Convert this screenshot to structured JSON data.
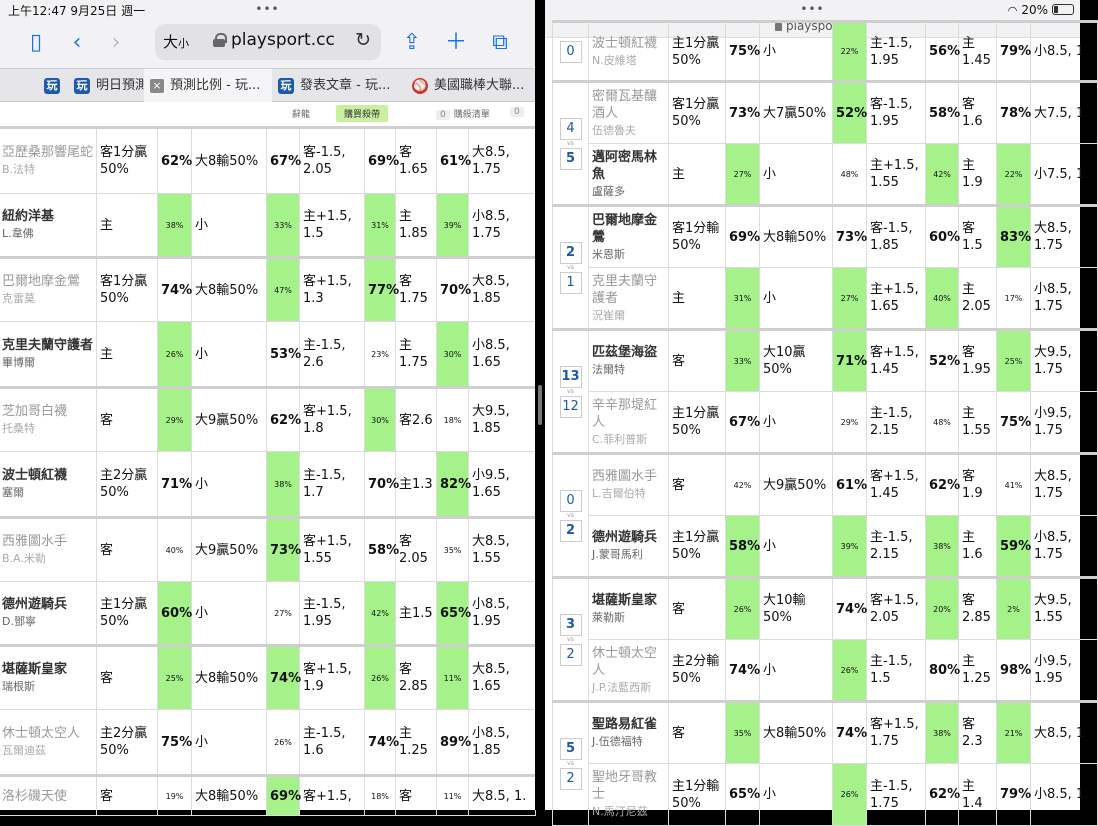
{
  "left": {
    "status": {
      "time": "上午12:47  9月25日 週一",
      "dots": "•••"
    },
    "toolbar": {
      "text_size": "大",
      "text_size_small": "小",
      "host": "playsport.cc"
    },
    "tabs": [
      {
        "label": "明日預測",
        "icon": "playsport-fav"
      },
      {
        "label": "預測比例 - 玩...",
        "icon": "close-icon",
        "active": true
      },
      {
        "label": "發表文章 - 玩...",
        "icon": "playsport-fav"
      },
      {
        "label": "美國職棒大聯...",
        "icon": "baseball-fav"
      }
    ],
    "tab_prefix_icon": "玩",
    "filter": {
      "item1": "辭龍",
      "buy": "購買殺帶",
      "badge1": "0",
      "list": "購殺清單",
      "badge2": "0"
    },
    "rows": [
      {
        "team": "亞歷桑那響尾蛇",
        "pitcher": "B.法特",
        "style": "gray",
        "c1": "客1分贏50%",
        "p1": "62%",
        "c2": "大8輸50%",
        "p2": "67%",
        "c3": "客-1.5, 2.05",
        "p3": "69%",
        "c4": "客 1.65",
        "p4": "61%",
        "c5": "大8.5, 1.75",
        "g": [
          0,
          0,
          0,
          0
        ],
        "small": [
          0,
          0,
          0,
          0
        ]
      },
      {
        "team": "紐約洋基",
        "pitcher": "L.韋佛",
        "style": "bold",
        "c1": "主",
        "p1": "38%",
        "c2": "小",
        "p2": "33%",
        "c3": "主+1.5, 1.5",
        "p3": "31%",
        "c4": "主 1.85",
        "p4": "39%",
        "c5": "小8.5, 1.75",
        "g": [
          1,
          1,
          1,
          1
        ],
        "small": [
          1,
          1,
          1,
          1
        ]
      },
      {
        "team": "巴爾地摩金鶯",
        "pitcher": "克雷莫",
        "style": "gray",
        "c1": "客1分贏50%",
        "p1": "74%",
        "c2": "大8輸50%",
        "p2": "47%",
        "c3": "客+1.5, 1.3",
        "p3": "77%",
        "c4": "客 1.75",
        "p4": "70%",
        "c5": "大8.5, 1.85",
        "g": [
          0,
          1,
          1,
          0
        ],
        "small": [
          0,
          1,
          0,
          0
        ]
      },
      {
        "team": "克里夫蘭守護者",
        "pitcher": "畢博爾",
        "style": "bold",
        "c1": "主",
        "p1": "26%",
        "c2": "小",
        "p2": "53%",
        "c3": "主-1.5, 2.6",
        "p3": "23%",
        "c4": "主 1.75",
        "p4": "30%",
        "c5": "小8.5, 1.65",
        "g": [
          1,
          0,
          0,
          1
        ],
        "small": [
          1,
          0,
          1,
          1
        ]
      },
      {
        "team": "芝加哥白襪",
        "pitcher": "托桑特",
        "style": "gray",
        "c1": "客",
        "p1": "29%",
        "c2": "大9贏50%",
        "p2": "62%",
        "c3": "客+1.5, 1.8",
        "p3": "30%",
        "c4": "客2.6",
        "p4": "18%",
        "c5": "大9.5, 1.85",
        "g": [
          1,
          0,
          1,
          0
        ],
        "small": [
          1,
          0,
          1,
          1
        ]
      },
      {
        "team": "波士頓紅襪",
        "pitcher": "塞爾",
        "style": "bold",
        "c1": "主2分贏50%",
        "p1": "71%",
        "c2": "小",
        "p2": "38%",
        "c3": "主-1.5, 1.7",
        "p3": "70%",
        "c4": "主1.3",
        "p4": "82%",
        "c5": "小9.5, 1.65",
        "g": [
          0,
          1,
          0,
          1
        ],
        "small": [
          0,
          1,
          0,
          0
        ]
      },
      {
        "team": "西雅圖水手",
        "pitcher": "B.A.米勒",
        "style": "gray",
        "c1": "客",
        "p1": "40%",
        "c2": "大9贏50%",
        "p2": "73%",
        "c3": "客+1.5, 1.55",
        "p3": "58%",
        "c4": "客 2.05",
        "p4": "35%",
        "c5": "大8.5, 1.55",
        "g": [
          0,
          1,
          0,
          0
        ],
        "small": [
          1,
          0,
          0,
          1
        ]
      },
      {
        "team": "德州遊騎兵",
        "pitcher": "D.鄧寧",
        "style": "bold",
        "c1": "主1分贏50%",
        "p1": "60%",
        "c2": "小",
        "p2": "27%",
        "c3": "主-1.5, 1.95",
        "p3": "42%",
        "c4": "主1.5",
        "p4": "65%",
        "c5": "小8.5, 1.95",
        "g": [
          1,
          0,
          1,
          1
        ],
        "small": [
          0,
          1,
          1,
          0
        ]
      },
      {
        "team": "堪薩斯皇家",
        "pitcher": "瑞根斯",
        "style": "bold",
        "c1": "客",
        "p1": "25%",
        "c2": "大8輸50%",
        "p2": "74%",
        "c3": "客+1.5, 1.9",
        "p3": "26%",
        "c4": "客 2.85",
        "p4": "11%",
        "c5": "大8.5, 1.65",
        "g": [
          1,
          1,
          1,
          1
        ],
        "small": [
          1,
          0,
          1,
          1
        ]
      },
      {
        "team": "休士頓太空人",
        "pitcher": "瓦爾迪茲",
        "style": "gray",
        "c1": "主2分贏50%",
        "p1": "75%",
        "c2": "小",
        "p2": "26%",
        "c3": "主-1.5, 1.6",
        "p3": "74%",
        "c4": "主 1.25",
        "p4": "89%",
        "c5": "小8.5, 1.85",
        "g": [
          0,
          0,
          0,
          0
        ],
        "small": [
          0,
          1,
          0,
          0
        ]
      },
      {
        "team": "洛杉磯天使",
        "pitcher": "",
        "style": "gray",
        "c1": "客",
        "p1": "19%",
        "c2": "大8輸50%",
        "p2": "69%",
        "c3": "客+1.5,",
        "p3": "18%",
        "c4": "客",
        "p4": "11%",
        "c5": "大8.5, 1.",
        "g": [
          0,
          1,
          0,
          0
        ],
        "small": [
          1,
          0,
          1,
          1
        ]
      }
    ]
  },
  "right": {
    "status": {
      "dots": "•••",
      "host": "playsport.cc",
      "battery": "20%"
    },
    "games": [
      {
        "s1": "0",
        "s2": "",
        "w": 0,
        "rows": [
          {
            "team": "波士頓紅襪",
            "pitcher": "N.皮維塔",
            "style": "gray",
            "c1": "主1分贏50%",
            "p1": "75%",
            "c2": "小",
            "p2": "22%",
            "c3": "主-1.5, 1.95",
            "p3": "56%",
            "c4": "主 1.45",
            "p4": "79%",
            "c5": "小8.5, 1",
            "g": [
              0,
              1,
              0,
              0
            ],
            "small": [
              0,
              1,
              0,
              0
            ]
          }
        ]
      },
      {
        "s1": "4",
        "s2": "5",
        "w": 2,
        "rows": [
          {
            "team": "密爾瓦基釀酒人",
            "pitcher": "伍德魯夫",
            "style": "gray",
            "c1": "客1分贏50%",
            "p1": "73%",
            "c2": "大7贏50%",
            "p2": "52%",
            "c3": "客-1.5, 1.95",
            "p3": "58%",
            "c4": "客1.6",
            "p4": "78%",
            "c5": "大7.5, 1.",
            "g": [
              0,
              1,
              0,
              0
            ],
            "small": [
              0,
              0,
              0,
              0
            ]
          },
          {
            "team": "邁阿密馬林魚",
            "pitcher": "盧薩多",
            "style": "bold",
            "c1": "主",
            "p1": "27%",
            "c2": "小",
            "p2": "48%",
            "c3": "主+1.5, 1.55",
            "p3": "42%",
            "c4": "主1.9",
            "p4": "22%",
            "c5": "小7.5, 1.",
            "g": [
              1,
              0,
              1,
              1
            ],
            "small": [
              1,
              1,
              1,
              1
            ]
          }
        ]
      },
      {
        "s1": "2",
        "s2": "1",
        "w": 1,
        "rows": [
          {
            "team": "巴爾地摩金鶯",
            "pitcher": "米恩斯",
            "style": "bold",
            "c1": "客1分輸50%",
            "p1": "69%",
            "c2": "大8輸50%",
            "p2": "73%",
            "c3": "客-1.5, 1.85",
            "p3": "60%",
            "c4": "客1.5",
            "p4": "83%",
            "c5": "大8.5, 1.75",
            "g": [
              0,
              0,
              0,
              1
            ],
            "small": [
              0,
              0,
              0,
              0
            ]
          },
          {
            "team": "克里夫蘭守護者",
            "pitcher": "況崔爾",
            "style": "gray",
            "c1": "主",
            "p1": "31%",
            "c2": "小",
            "p2": "27%",
            "c3": "主+1.5, 1.65",
            "p3": "40%",
            "c4": "主 2.05",
            "p4": "17%",
            "c5": "小8.5, 1.75",
            "g": [
              1,
              1,
              1,
              0
            ],
            "small": [
              1,
              1,
              1,
              1
            ]
          }
        ]
      },
      {
        "s1": "13",
        "s2": "12",
        "w": 1,
        "rows": [
          {
            "team": "匹茲堡海盜",
            "pitcher": "法爾特",
            "style": "bold",
            "c1": "客",
            "p1": "33%",
            "c2": "大10贏50%",
            "p2": "71%",
            "c3": "客+1.5, 1.45",
            "p3": "52%",
            "c4": "客 1.95",
            "p4": "25%",
            "c5": "大9.5, 1.75",
            "g": [
              1,
              1,
              0,
              1
            ],
            "small": [
              1,
              0,
              0,
              1
            ]
          },
          {
            "team": "辛辛那堤紅人",
            "pitcher": "C.菲利普斯",
            "style": "gray",
            "c1": "主1分贏50%",
            "p1": "67%",
            "c2": "小",
            "p2": "29%",
            "c3": "主-1.5, 2.15",
            "p3": "48%",
            "c4": "主 1.55",
            "p4": "75%",
            "c5": "小9.5, 1.75",
            "g": [
              0,
              0,
              0,
              0
            ],
            "small": [
              0,
              1,
              1,
              0
            ]
          }
        ]
      },
      {
        "s1": "0",
        "s2": "2",
        "w": 2,
        "rows": [
          {
            "team": "西雅圖水手",
            "pitcher": "L.吉爾伯特",
            "style": "gray",
            "c1": "客",
            "p1": "42%",
            "c2": "大9贏50%",
            "p2": "61%",
            "c3": "客+1.5, 1.45",
            "p3": "62%",
            "c4": "客1.9",
            "p4": "41%",
            "c5": "大8.5, 1.75",
            "g": [
              0,
              0,
              0,
              0
            ],
            "small": [
              1,
              0,
              0,
              1
            ]
          },
          {
            "team": "德州遊騎兵",
            "pitcher": "J.蒙哥馬利",
            "style": "bold",
            "c1": "主1分贏50%",
            "p1": "58%",
            "c2": "小",
            "p2": "39%",
            "c3": "主-1.5, 2.15",
            "p3": "38%",
            "c4": "主1.6",
            "p4": "59%",
            "c5": "小8.5, 1.75",
            "g": [
              1,
              1,
              1,
              1
            ],
            "small": [
              0,
              1,
              1,
              0
            ]
          }
        ]
      },
      {
        "s1": "3",
        "s2": "2",
        "w": 1,
        "rows": [
          {
            "team": "堪薩斯皇家",
            "pitcher": "萊勒斯",
            "style": "bold",
            "c1": "客",
            "p1": "26%",
            "c2": "大10輸50%",
            "p2": "74%",
            "c3": "客+1.5, 2.05",
            "p3": "20%",
            "c4": "客 2.85",
            "p4": "2%",
            "c5": "大9.5, 1.55",
            "g": [
              1,
              0,
              1,
              1
            ],
            "small": [
              1,
              0,
              1,
              1
            ]
          },
          {
            "team": "休士頓太空人",
            "pitcher": "J.P.法藍西斯",
            "style": "gray",
            "c1": "主2分輸50%",
            "p1": "74%",
            "c2": "小",
            "p2": "26%",
            "c3": "主-1.5, 1.5",
            "p3": "80%",
            "c4": "主 1.25",
            "p4": "98%",
            "c5": "小9.5, 1.95",
            "g": [
              0,
              1,
              0,
              0
            ],
            "small": [
              0,
              1,
              0,
              0
            ]
          }
        ]
      },
      {
        "s1": "5",
        "s2": "2",
        "w": 1,
        "rows": [
          {
            "team": "聖路易紅雀",
            "pitcher": "J.伍德福特",
            "style": "bold",
            "c1": "客",
            "p1": "35%",
            "c2": "大8輸50%",
            "p2": "74%",
            "c3": "客+1.5, 1.75",
            "p3": "38%",
            "c4": "客2.3",
            "p4": "21%",
            "c5": "大8.5, 1.",
            "g": [
              1,
              0,
              1,
              1
            ],
            "small": [
              1,
              0,
              1,
              1
            ]
          },
          {
            "team": "聖地牙哥教士",
            "pitcher": "N.馬汀尼茲",
            "style": "gray",
            "c1": "主1分輸50%",
            "p1": "65%",
            "c2": "小",
            "p2": "26%",
            "c3": "主-1.5, 1.75",
            "p3": "62%",
            "c4": "主1.4",
            "p4": "79%",
            "c5": "小8.5, 1.",
            "g": [
              0,
              1,
              0,
              0
            ],
            "small": [
              0,
              1,
              0,
              0
            ]
          }
        ]
      }
    ]
  },
  "colors": {
    "accent": "#1a73e8",
    "highlight": "#a6f28a",
    "score": "#1c5aa6"
  }
}
